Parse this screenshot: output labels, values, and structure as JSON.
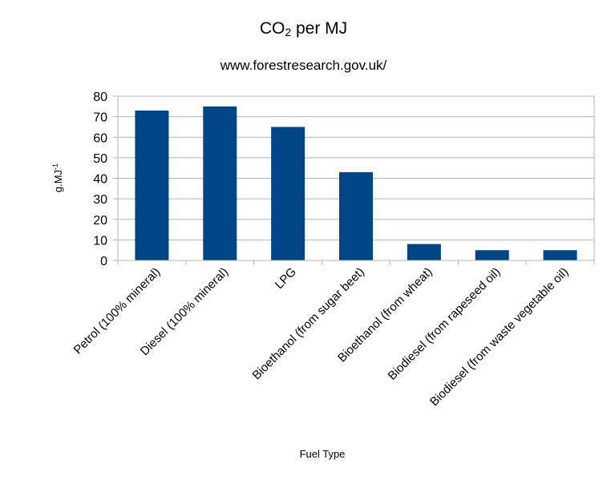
{
  "chart_data": {
    "type": "bar",
    "title_main": "CO",
    "title_sub": "2",
    "title_rest": " per MJ",
    "subtitle": "www.forestresearch.gov.uk/",
    "xlabel": "Fuel Type",
    "ylabel": "g.MJ-1",
    "categories": [
      "Petrol (100% mineral)",
      "Diesel (100% mineral)",
      "LPG",
      "Bioethanol (from sugar beet)",
      "Bioethanol (from wheat)",
      "Biodiesel (from rapeseed oil)",
      "Biodiesel (from waste vegetable oil)"
    ],
    "values": [
      73,
      75,
      65,
      43,
      8,
      5,
      5
    ],
    "ylim": [
      0,
      80
    ],
    "yticks": [
      0,
      10,
      20,
      30,
      40,
      50,
      60,
      70,
      80
    ],
    "grid": true,
    "legend": "none",
    "bar_color": "#004586"
  }
}
